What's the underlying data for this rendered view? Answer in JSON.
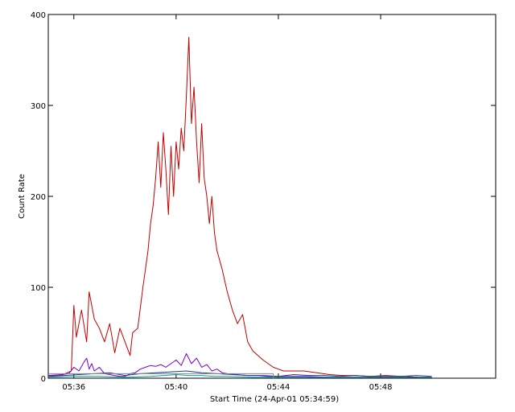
{
  "chart_data": {
    "type": "line",
    "title": "",
    "xlabel": "Start Time (24-Apr-01 05:34:59)",
    "ylabel": "Count Rate",
    "x_units": "minutes after 05:34:59",
    "xlim": [
      0,
      17.5
    ],
    "ylim": [
      0,
      400
    ],
    "x_ticks": [
      {
        "value": 1.0,
        "label": "05:36"
      },
      {
        "value": 5.0,
        "label": "05:40"
      },
      {
        "value": 9.0,
        "label": "05:44"
      },
      {
        "value": 13.0,
        "label": "05:48"
      }
    ],
    "y_ticks": [
      {
        "value": 0,
        "label": "0"
      },
      {
        "value": 100,
        "label": "100"
      },
      {
        "value": 200,
        "label": "200"
      },
      {
        "value": 300,
        "label": "300"
      },
      {
        "value": 400,
        "label": "400"
      }
    ],
    "grid": false,
    "legend": "none",
    "series": [
      {
        "color": "#c00000",
        "x": [
          0.0,
          0.5,
          0.9,
          1.0,
          1.1,
          1.3,
          1.5,
          1.6,
          1.8,
          2.0,
          2.2,
          2.4,
          2.6,
          2.8,
          3.0,
          3.2,
          3.3,
          3.5,
          3.7,
          3.9,
          4.0,
          4.1,
          4.2,
          4.3,
          4.4,
          4.5,
          4.6,
          4.7,
          4.8,
          4.9,
          5.0,
          5.1,
          5.2,
          5.3,
          5.4,
          5.5,
          5.6,
          5.7,
          5.8,
          5.9,
          6.0,
          6.1,
          6.2,
          6.3,
          6.4,
          6.5,
          6.6,
          6.8,
          7.0,
          7.2,
          7.4,
          7.6,
          7.8,
          8.0,
          8.2,
          8.4,
          8.6,
          8.8,
          9.0,
          9.2,
          9.5,
          10.0,
          10.5,
          11.0,
          11.5,
          12.0,
          12.5,
          13.0,
          13.5,
          14.0,
          14.5,
          15.0
        ],
        "y": [
          3,
          3,
          8,
          80,
          45,
          75,
          40,
          95,
          65,
          55,
          40,
          60,
          28,
          55,
          40,
          25,
          50,
          55,
          100,
          140,
          170,
          190,
          220,
          260,
          210,
          270,
          230,
          180,
          255,
          200,
          260,
          230,
          275,
          250,
          310,
          375,
          280,
          320,
          260,
          215,
          280,
          220,
          200,
          170,
          200,
          160,
          140,
          120,
          95,
          75,
          60,
          70,
          40,
          30,
          25,
          20,
          16,
          12,
          10,
          8,
          8,
          8,
          6,
          4,
          3,
          3,
          2,
          2,
          2,
          2,
          1,
          1
        ]
      },
      {
        "color": "#7700cc",
        "x": [
          0.0,
          0.5,
          0.8,
          1.0,
          1.2,
          1.4,
          1.5,
          1.6,
          1.7,
          1.8,
          2.0,
          2.2,
          2.4,
          2.6,
          2.8,
          3.0,
          3.2,
          3.4,
          3.6,
          3.8,
          4.0,
          4.2,
          4.4,
          4.6,
          4.8,
          5.0,
          5.2,
          5.4,
          5.6,
          5.8,
          6.0,
          6.2,
          6.4,
          6.6,
          6.8,
          7.0,
          7.4,
          7.8,
          8.2,
          8.6,
          9.0,
          9.5,
          10.0,
          11.0,
          12.0,
          13.0,
          14.0,
          15.0
        ],
        "y": [
          3,
          4,
          5,
          12,
          8,
          18,
          22,
          10,
          16,
          8,
          12,
          5,
          4,
          3,
          2,
          2,
          5,
          6,
          10,
          12,
          14,
          13,
          15,
          12,
          16,
          20,
          14,
          27,
          16,
          22,
          12,
          15,
          8,
          10,
          6,
          5,
          4,
          3,
          3,
          2,
          2,
          2,
          2,
          1,
          1,
          1,
          1,
          1
        ]
      },
      {
        "color": "#1f3a93",
        "x": [
          0.0,
          0.6,
          1.2,
          1.8,
          2.4,
          3.0,
          3.6,
          4.2,
          4.8,
          5.4,
          6.0,
          6.6,
          7.2,
          7.8,
          8.4,
          9.0,
          9.6,
          10.2,
          10.8,
          11.4,
          12.0,
          12.6,
          13.2,
          13.8,
          14.4,
          15.0
        ],
        "y": [
          2,
          3,
          4,
          5,
          6,
          3,
          5,
          6,
          7,
          8,
          6,
          5,
          4,
          3,
          3,
          2,
          4,
          3,
          3,
          2,
          3,
          2,
          3,
          2,
          3,
          2
        ]
      },
      {
        "color": "#00a0a0",
        "x": [
          0.0,
          1.0,
          2.0,
          3.0,
          4.0,
          4.5,
          5.0,
          5.5,
          6.0,
          6.5,
          7.0,
          8.0,
          9.0,
          10.0,
          11.0,
          12.0,
          13.0,
          14.0,
          15.0
        ],
        "y": [
          1,
          2,
          2,
          1,
          2,
          3,
          4,
          3,
          3,
          2,
          2,
          1,
          1,
          1,
          1,
          1,
          1,
          1,
          1
        ]
      },
      {
        "color": "#888888",
        "x": [
          0.0,
          8.8,
          8.8
        ],
        "y": [
          5,
          5,
          0
        ]
      }
    ]
  }
}
